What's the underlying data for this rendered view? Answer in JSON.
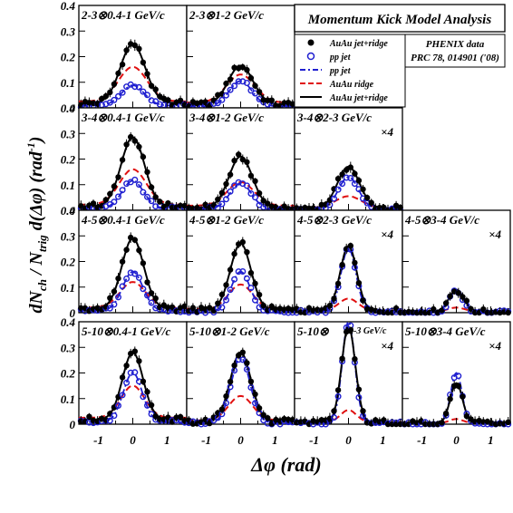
{
  "chart_data": {
    "type": "scatter",
    "title": "Momentum Kick Model Analysis",
    "source_note": [
      "PHENIX data",
      "PRC 78, 014901 ('08)"
    ],
    "xlabel": "Δφ (rad)",
    "ylabel": "dN_ch / N_trig d(Δφ)  (rad^-1)",
    "xlim": [
      -1.57,
      1.57
    ],
    "ylim": [
      0,
      0.4
    ],
    "x_ticks": [
      -1,
      0,
      1
    ],
    "y_ticks": [
      0,
      0.1,
      0.2,
      0.3,
      0.4
    ],
    "legend": {
      "placement": "top-right",
      "entries": [
        {
          "label": "AuAu  jet+ridge",
          "marker": "filled-circle",
          "color": "#000000"
        },
        {
          "label": "pp jet",
          "marker": "open-circle",
          "color": "#1f1fd0"
        },
        {
          "label": "pp jet",
          "line": "dash-dot",
          "color": "#1f1fd0"
        },
        {
          "label": "AuAu ridge",
          "line": "dashed",
          "color": "#e01010"
        },
        {
          "label": "AuAu jet+ridge",
          "line": "solid",
          "color": "#000000"
        }
      ]
    },
    "panels": [
      {
        "row": 0,
        "col": 0,
        "label": "2-3⊗0.4-1 GeV/c",
        "scale": "",
        "auau_peak": 0.25,
        "pp_peak": 0.088,
        "ridge_peak": 0.16,
        "ridge_base": 0.025,
        "sigma": 0.36,
        "base": 0.018
      },
      {
        "row": 0,
        "col": 1,
        "label": "2-3⊗1-2 GeV/c",
        "scale": "",
        "auau_peak": 0.165,
        "pp_peak": 0.105,
        "ridge_peak": 0.13,
        "ridge_base": 0.02,
        "sigma": 0.36,
        "base": 0.012
      },
      {
        "row": 1,
        "col": 0,
        "label": "3-4⊗0.4-1 GeV/c",
        "scale": "",
        "auau_peak": 0.285,
        "pp_peak": 0.115,
        "ridge_peak": 0.16,
        "ridge_base": 0.022,
        "sigma": 0.34,
        "base": 0.015
      },
      {
        "row": 1,
        "col": 1,
        "label": "3-4⊗1-2 GeV/c",
        "scale": "",
        "auau_peak": 0.21,
        "pp_peak": 0.105,
        "ridge_peak": 0.11,
        "ridge_base": 0.018,
        "sigma": 0.34,
        "base": 0.01
      },
      {
        "row": 1,
        "col": 2,
        "label": "3-4⊗2-3 GeV/c",
        "scale": "×4",
        "auau_peak": 0.17,
        "pp_peak": 0.13,
        "ridge_peak": 0.055,
        "ridge_base": 0.01,
        "sigma": 0.32,
        "base": 0.008
      },
      {
        "row": 2,
        "col": 0,
        "label": "4-5⊗0.4-1 GeV/c",
        "scale": "",
        "auau_peak": 0.29,
        "pp_peak": 0.16,
        "ridge_peak": 0.12,
        "ridge_base": 0.02,
        "sigma": 0.32,
        "base": 0.015
      },
      {
        "row": 2,
        "col": 1,
        "label": "4-5⊗1-2 GeV/c",
        "scale": "",
        "auau_peak": 0.27,
        "pp_peak": 0.16,
        "ridge_peak": 0.11,
        "ridge_base": 0.015,
        "sigma": 0.3,
        "base": 0.01
      },
      {
        "row": 2,
        "col": 2,
        "label": "4-5⊗2-3 GeV/c",
        "scale": "×4",
        "auau_peak": 0.26,
        "pp_peak": 0.25,
        "ridge_peak": 0.055,
        "ridge_base": 0.008,
        "sigma": 0.24,
        "base": 0.006
      },
      {
        "row": 2,
        "col": 3,
        "label": "4-5⊗3-4 GeV/c",
        "scale": "×4",
        "auau_peak": 0.09,
        "pp_peak": 0.085,
        "ridge_peak": 0.02,
        "ridge_base": 0.003,
        "sigma": 0.22,
        "base": 0.002
      },
      {
        "row": 3,
        "col": 0,
        "label": "5-10⊗0.4-1 GeV/c",
        "scale": "",
        "auau_peak": 0.28,
        "pp_peak": 0.2,
        "ridge_peak": 0.15,
        "ridge_base": 0.025,
        "sigma": 0.3,
        "base": 0.018
      },
      {
        "row": 3,
        "col": 1,
        "label": "5-10⊗1-2 GeV/c",
        "scale": "",
        "auau_peak": 0.28,
        "pp_peak": 0.26,
        "ridge_peak": 0.11,
        "ridge_base": 0.015,
        "sigma": 0.3,
        "base": 0.01
      },
      {
        "row": 3,
        "col": 2,
        "label": "5-10⊗",
        "label2": "2-3 GeV/c",
        "scale": "×4",
        "auau_peak": 0.38,
        "pp_peak": 0.4,
        "ridge_peak": 0.055,
        "ridge_base": 0.008,
        "sigma": 0.2,
        "base": 0.006
      },
      {
        "row": 3,
        "col": 3,
        "label": "5-10⊗3-4 GeV/c",
        "scale": "×4",
        "auau_peak": 0.16,
        "pp_peak": 0.2,
        "ridge_peak": 0.02,
        "ridge_base": 0.003,
        "sigma": 0.18,
        "base": 0.002
      }
    ]
  },
  "colors": {
    "auau": "#000000",
    "pp": "#1f1fd0",
    "ridge": "#e01010"
  }
}
